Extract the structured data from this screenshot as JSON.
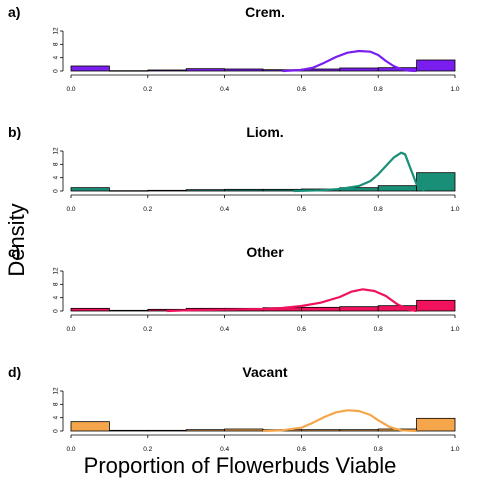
{
  "figure": {
    "ylabel": "Density",
    "xlabel": "Proportion of Flowerbuds Viable"
  },
  "chart_data": [
    {
      "type": "histogram+density",
      "panel_label": "a)",
      "title": "Crem.",
      "color": "#7a1ef0",
      "xlim": [
        0,
        1
      ],
      "ylim": [
        0,
        12
      ],
      "x_ticks": [
        "0.0",
        "0.2",
        "0.4",
        "0.6",
        "0.8",
        "1.0"
      ],
      "y_ticks": [
        "0",
        "4",
        "8",
        "12"
      ],
      "bins": [
        0,
        0.1,
        0.2,
        0.3,
        0.4,
        0.5,
        0.6,
        0.7,
        0.8,
        0.9,
        1.0
      ],
      "bar_heights": [
        1.5,
        0.1,
        0.3,
        0.7,
        0.6,
        0.4,
        0.6,
        0.9,
        1.0,
        3.3
      ],
      "density_x": [
        0.55,
        0.6,
        0.63,
        0.66,
        0.69,
        0.72,
        0.75,
        0.78,
        0.8,
        0.82,
        0.84,
        0.86,
        0.88,
        0.9
      ],
      "density_y": [
        0,
        0.3,
        1.0,
        2.5,
        4.2,
        5.5,
        6.0,
        5.8,
        4.8,
        3.0,
        1.5,
        0.5,
        0.1,
        0
      ]
    },
    {
      "type": "histogram+density",
      "panel_label": "b)",
      "title": "Liom.",
      "color": "#1a8f77",
      "xlim": [
        0,
        1
      ],
      "ylim": [
        0,
        12
      ],
      "x_ticks": [
        "0.0",
        "0.2",
        "0.4",
        "0.6",
        "0.8",
        "1.0"
      ],
      "y_ticks": [
        "0",
        "4",
        "8",
        "12"
      ],
      "bins": [
        0,
        0.1,
        0.2,
        0.3,
        0.4,
        0.5,
        0.6,
        0.7,
        0.8,
        0.9,
        1.0
      ],
      "bar_heights": [
        1.0,
        0.1,
        0.2,
        0.4,
        0.5,
        0.5,
        0.6,
        1.0,
        1.6,
        5.5
      ],
      "density_x": [
        0.58,
        0.65,
        0.7,
        0.75,
        0.78,
        0.8,
        0.82,
        0.84,
        0.86,
        0.87,
        0.88,
        0.9,
        0.92
      ],
      "density_y": [
        0,
        0.2,
        0.6,
        1.5,
        3.0,
        5.0,
        7.5,
        10.0,
        11.5,
        11.0,
        8.0,
        2.0,
        0
      ]
    },
    {
      "type": "histogram+density",
      "panel_label": "c)",
      "title": "Other",
      "color": "#f0125c",
      "xlim": [
        0,
        1
      ],
      "ylim": [
        0,
        12
      ],
      "x_ticks": [
        "0.0",
        "0.2",
        "0.4",
        "0.6",
        "0.8",
        "1.0"
      ],
      "y_ticks": [
        "0",
        "4",
        "8",
        "12"
      ],
      "bins": [
        0,
        0.1,
        0.2,
        0.3,
        0.4,
        0.5,
        0.6,
        0.7,
        0.8,
        0.9,
        1.0
      ],
      "bar_heights": [
        0.8,
        0.2,
        0.5,
        0.8,
        0.8,
        1.0,
        1.1,
        1.3,
        1.6,
        3.2
      ],
      "density_x": [
        0.25,
        0.3,
        0.4,
        0.5,
        0.55,
        0.6,
        0.65,
        0.7,
        0.73,
        0.76,
        0.79,
        0.82,
        0.85,
        0.88,
        0.9
      ],
      "density_y": [
        0,
        0.2,
        0.4,
        0.6,
        0.9,
        1.5,
        2.5,
        4.2,
        5.8,
        6.5,
        6.0,
        4.5,
        2.0,
        0.4,
        0
      ]
    },
    {
      "type": "histogram+density",
      "panel_label": "d)",
      "title": "Vacant",
      "color": "#f5a64a",
      "xlim": [
        0,
        1
      ],
      "ylim": [
        0,
        12
      ],
      "x_ticks": [
        "0.0",
        "0.2",
        "0.4",
        "0.6",
        "0.8",
        "1.0"
      ],
      "y_ticks": [
        "0",
        "4",
        "8",
        "12"
      ],
      "bins": [
        0,
        0.1,
        0.2,
        0.3,
        0.4,
        0.5,
        0.6,
        0.7,
        0.8,
        0.9,
        1.0
      ],
      "bar_heights": [
        2.8,
        0.2,
        0.2,
        0.4,
        0.6,
        0.4,
        0.4,
        0.4,
        0.6,
        3.8
      ],
      "density_x": [
        0.5,
        0.55,
        0.6,
        0.63,
        0.66,
        0.69,
        0.72,
        0.75,
        0.78,
        0.8,
        0.83,
        0.86,
        0.9
      ],
      "density_y": [
        0,
        0.2,
        1.0,
        2.5,
        4.2,
        5.6,
        6.2,
        6.0,
        4.8,
        3.2,
        1.2,
        0.2,
        0
      ]
    }
  ]
}
